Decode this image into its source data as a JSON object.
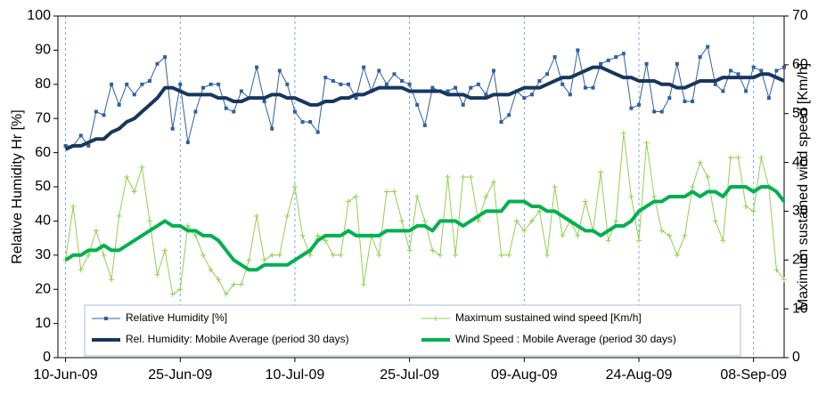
{
  "chart_data": {
    "type": "line",
    "y_label": "Relative  Humidity Hr [%]",
    "y2_label": "Maximum sustained wind speed [Km/h]",
    "x": [
      "2009-06-10",
      "2009-06-11",
      "2009-06-12",
      "2009-06-13",
      "2009-06-14",
      "2009-06-15",
      "2009-06-16",
      "2009-06-17",
      "2009-06-18",
      "2009-06-19",
      "2009-06-20",
      "2009-06-21",
      "2009-06-22",
      "2009-06-23",
      "2009-06-24",
      "2009-06-25",
      "2009-06-26",
      "2009-06-27",
      "2009-06-28",
      "2009-06-29",
      "2009-06-30",
      "2009-07-01",
      "2009-07-02",
      "2009-07-03",
      "2009-07-04",
      "2009-07-05",
      "2009-07-06",
      "2009-07-07",
      "2009-07-08",
      "2009-07-09",
      "2009-07-10",
      "2009-07-11",
      "2009-07-12",
      "2009-07-13",
      "2009-07-14",
      "2009-07-15",
      "2009-07-16",
      "2009-07-17",
      "2009-07-18",
      "2009-07-19",
      "2009-07-20",
      "2009-07-21",
      "2009-07-22",
      "2009-07-23",
      "2009-07-24",
      "2009-07-25",
      "2009-07-26",
      "2009-07-27",
      "2009-07-28",
      "2009-07-29",
      "2009-07-30",
      "2009-07-31",
      "2009-08-01",
      "2009-08-02",
      "2009-08-03",
      "2009-08-04",
      "2009-08-05",
      "2009-08-06",
      "2009-08-07",
      "2009-08-08",
      "2009-08-09",
      "2009-08-10",
      "2009-08-11",
      "2009-08-12",
      "2009-08-13",
      "2009-08-14",
      "2009-08-15",
      "2009-08-16",
      "2009-08-17",
      "2009-08-18",
      "2009-08-19",
      "2009-08-20",
      "2009-08-21",
      "2009-08-22",
      "2009-08-23",
      "2009-08-24",
      "2009-08-25",
      "2009-08-26",
      "2009-08-27",
      "2009-08-28",
      "2009-08-29",
      "2009-08-30",
      "2009-08-31",
      "2009-09-01",
      "2009-09-02",
      "2009-09-03",
      "2009-09-04",
      "2009-09-05",
      "2009-09-06",
      "2009-09-07",
      "2009-09-08",
      "2009-09-09",
      "2009-09-10",
      "2009-09-11",
      "2009-09-12"
    ],
    "series": [
      {
        "name": "Relative Humidity [%]",
        "color": "#2e5fa3",
        "marker": "square",
        "values": [
          62,
          62,
          65,
          62,
          72,
          71,
          80,
          74,
          80,
          77,
          80,
          81,
          86,
          88,
          67,
          80,
          63,
          72,
          79,
          80,
          80,
          73,
          72,
          78,
          76,
          85,
          75,
          67,
          84,
          80,
          72,
          69,
          69,
          66,
          82,
          81,
          80,
          80,
          76,
          85,
          78,
          84,
          80,
          83,
          81,
          80,
          74,
          68,
          79,
          78,
          78,
          79,
          74,
          79,
          80,
          77,
          84,
          69,
          71,
          78,
          76,
          77,
          81,
          83,
          88,
          80,
          77,
          90,
          79,
          79,
          86,
          87,
          88,
          89,
          73,
          74,
          86,
          72,
          72,
          76,
          86,
          75,
          75,
          88,
          91,
          80,
          78,
          84,
          83,
          78,
          85,
          84,
          76,
          84,
          85
        ]
      },
      {
        "name": "Maximum sustained wind speed [Km/h]",
        "color": "#92d050",
        "marker": "plus",
        "axis": "y2",
        "values": [
          20,
          31,
          18,
          21,
          26,
          21,
          16,
          29,
          37,
          34,
          39,
          28,
          17,
          22,
          13,
          14,
          27,
          25,
          21,
          18,
          16,
          13,
          15,
          15,
          20,
          29,
          20,
          21,
          21,
          29,
          35,
          25,
          21,
          25,
          24,
          21,
          21,
          32,
          33,
          15,
          25,
          21,
          34,
          34,
          28,
          22,
          33,
          28,
          22,
          21,
          37,
          21,
          37,
          37,
          28,
          33,
          36,
          21,
          21,
          28,
          26,
          28,
          30,
          21,
          35,
          25,
          28,
          25,
          32,
          26,
          38,
          24,
          28,
          46,
          33,
          24,
          44,
          33,
          26,
          25,
          21,
          25,
          35,
          40,
          37,
          28,
          24,
          41,
          41,
          31,
          30,
          41,
          35,
          18,
          16
        ]
      },
      {
        "name": "Rel. Humidity: Mobile Average (period 30 days)",
        "color": "#17375e",
        "width": 4,
        "values": [
          61,
          62,
          62,
          63,
          64,
          64,
          66,
          67,
          69,
          70,
          72,
          74,
          76,
          79,
          79,
          78,
          77,
          77,
          77,
          77,
          76,
          76,
          75,
          75,
          76,
          76,
          76,
          77,
          77,
          76,
          76,
          75,
          74,
          74,
          75,
          75,
          76,
          76,
          77,
          77,
          78,
          79,
          79,
          79,
          79,
          78,
          78,
          78,
          78,
          78,
          77,
          77,
          77,
          76,
          76,
          76,
          77,
          77,
          77,
          78,
          79,
          79,
          79,
          80,
          81,
          82,
          82,
          83,
          84,
          85,
          85,
          84,
          83,
          82,
          82,
          81,
          81,
          81,
          80,
          80,
          79,
          79,
          80,
          81,
          81,
          81,
          82,
          82,
          82,
          82,
          82,
          83,
          83,
          82,
          81
        ]
      },
      {
        "name": "Wind Speed : Mobile Average (period 30 days)",
        "color": "#00b050",
        "width": 4,
        "axis": "y2",
        "values": [
          20,
          21,
          21,
          22,
          22,
          23,
          22,
          22,
          23,
          24,
          25,
          26,
          27,
          28,
          27,
          27,
          26,
          26,
          25,
          25,
          24,
          22,
          20,
          19,
          18,
          18,
          19,
          19,
          19,
          19,
          20,
          21,
          22,
          24,
          25,
          25,
          25,
          26,
          25,
          25,
          25,
          25,
          26,
          26,
          26,
          26,
          27,
          27,
          26,
          28,
          28,
          28,
          27,
          28,
          29,
          30,
          30,
          30,
          32,
          32,
          32,
          31,
          31,
          30,
          30,
          29,
          28,
          27,
          26,
          26,
          25,
          26,
          27,
          27,
          28,
          30,
          31,
          32,
          32,
          33,
          33,
          33,
          34,
          33,
          34,
          34,
          33,
          35,
          35,
          35,
          34,
          35,
          35,
          34,
          32
        ]
      }
    ],
    "xlim": [
      "2009-06-09",
      "2009-09-12"
    ],
    "xticks": [
      {
        "value": "2009-06-10",
        "label": "10-Jun-09"
      },
      {
        "value": "2009-06-25",
        "label": "25-Jun-09"
      },
      {
        "value": "2009-07-10",
        "label": "10-Jul-09"
      },
      {
        "value": "2009-07-25",
        "label": "25-Jul-09"
      },
      {
        "value": "2009-08-09",
        "label": "09-Aug-09"
      },
      {
        "value": "2009-08-24",
        "label": "24-Aug-09"
      },
      {
        "value": "2009-09-08",
        "label": "08-Sep-09"
      }
    ],
    "ylim": [
      0,
      100
    ],
    "yticks": [
      0,
      10,
      20,
      30,
      40,
      50,
      60,
      70,
      80,
      90,
      100
    ],
    "y2lim": [
      0,
      70
    ],
    "y2ticks": [
      0,
      10,
      20,
      30,
      40,
      50,
      60,
      70
    ],
    "x_grid": true,
    "legend": "bottom"
  }
}
